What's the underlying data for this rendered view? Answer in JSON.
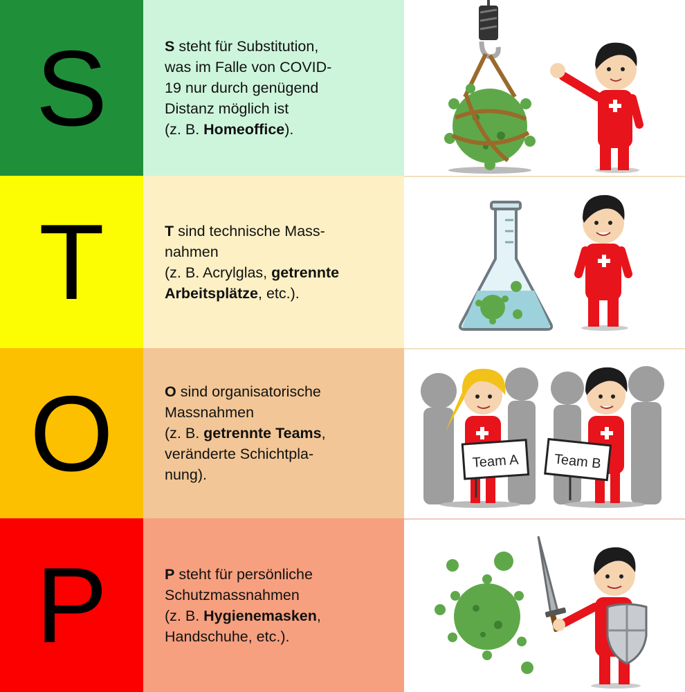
{
  "colors": {
    "s_letter_bg": "#1f8f3a",
    "s_text_bg": "#cdf5dc",
    "t_letter_bg": "#fcfc02",
    "t_text_bg": "#fcf0c4",
    "o_letter_bg": "#fcc000",
    "o_text_bg": "#f2c696",
    "p_letter_bg": "#fc0000",
    "p_text_bg": "#f7a07f",
    "virus": "#5fa84a",
    "suit": "#e8141b"
  },
  "rows": {
    "s": {
      "letter": "S",
      "lead": "S",
      "t1": " steht für Substitution,",
      "t2": "was im Falle von COVID-",
      "t3": "19 nur durch genügend",
      "t4": "Distanz möglich ist",
      "t5a": "(z. B. ",
      "t5b": "Homeoffice",
      "t5c": ").",
      "icon": "crane-hook-virus-with-rope-and-mascot"
    },
    "t": {
      "letter": "T",
      "lead": "T",
      "t1": " sind technische Mass-",
      "t2": "nahmen",
      "t3": "(z. B. Acrylglas, ",
      "t3b": "getrennte",
      "t4b": "Arbeitsplätze",
      "t4c": ", etc.).",
      "icon": "lab-flask-with-virus-and-mascot"
    },
    "o": {
      "letter": "O",
      "lead": "O",
      "t1": " sind organisatorische",
      "t2": "Massnahmen",
      "t3a": "(z. B. ",
      "t3b": "getrennte Teams",
      "t3c": ",",
      "t4": "veränderte Schichtpla-",
      "t5": "nung).",
      "sign_a": "Team A",
      "sign_b": "Team B",
      "icon": "two-mascots-holding-team-signs"
    },
    "p": {
      "letter": "P",
      "lead": "P",
      "t1": " steht für persönliche",
      "t2": "Schutzmassnahmen",
      "t3a": "(z. B. ",
      "t3b": "Hygienemasken",
      "t3c": ",",
      "t4": "Handschuhe, etc.).",
      "icon": "mascot-with-sword-and-shield-vs-virus"
    }
  }
}
